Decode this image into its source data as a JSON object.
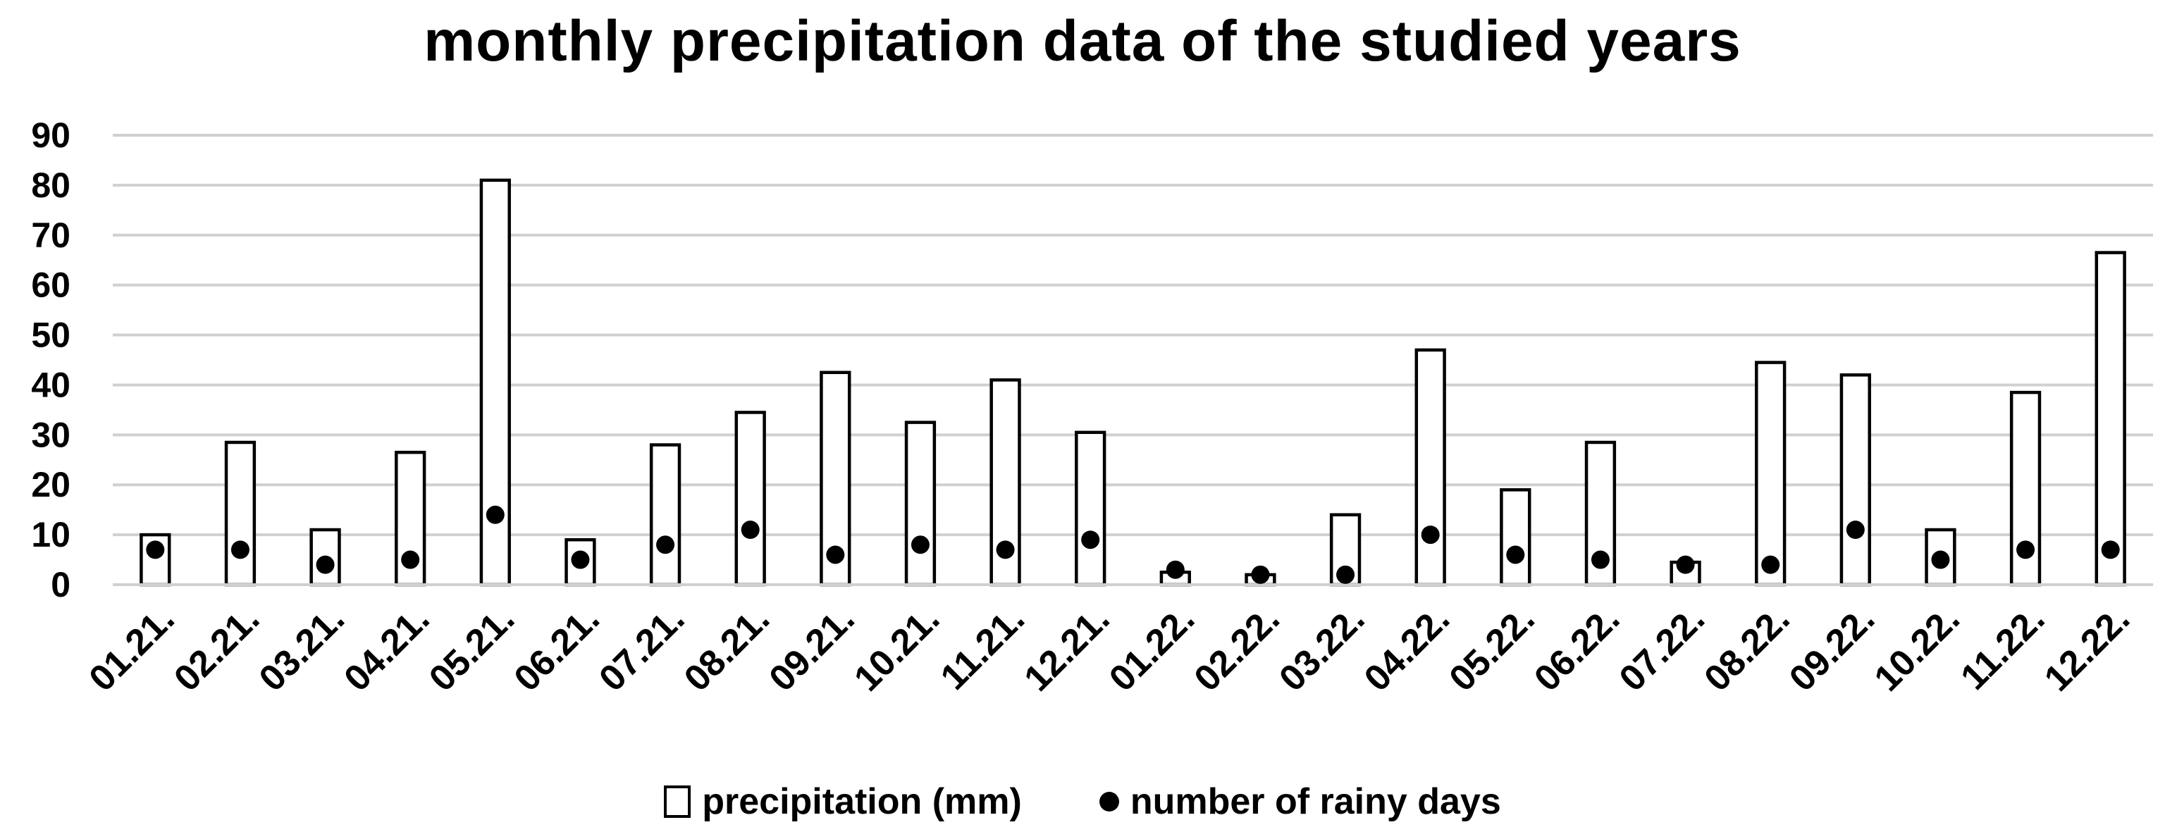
{
  "chart_data": {
    "type": "bar",
    "title": "monthly precipitation data of the studied years",
    "categories": [
      "01.21.",
      "02.21.",
      "03.21.",
      "04.21.",
      "05.21.",
      "06.21.",
      "07.21.",
      "08.21.",
      "09.21.",
      "10.21.",
      "11.21.",
      "12.21.",
      "01.22.",
      "02.22.",
      "03.22.",
      "04.22.",
      "05.22.",
      "06.22.",
      "07.22.",
      "08.22.",
      "09.22.",
      "10.22.",
      "11.22.",
      "12.22."
    ],
    "series": [
      {
        "name": "precipitation (mm)",
        "mark": "bar",
        "color": "#ffffff",
        "values": [
          10,
          28.5,
          11,
          26.5,
          81,
          9,
          28,
          34.5,
          42.5,
          32.5,
          41,
          30.5,
          2.5,
          2,
          14,
          47,
          19,
          28.5,
          4.5,
          44.5,
          42,
          11,
          38.5,
          66.5
        ]
      },
      {
        "name": "number of rainy days",
        "mark": "point",
        "color": "#000000",
        "values": [
          7,
          7,
          4,
          5,
          14,
          5,
          8,
          11,
          6,
          8,
          7,
          9,
          3,
          2,
          2,
          10,
          6,
          5,
          4,
          4,
          11,
          5,
          7,
          7
        ]
      }
    ],
    "yticks": [
      "0",
      "10",
      "20",
      "30",
      "40",
      "50",
      "60",
      "70",
      "80",
      "90"
    ],
    "ylim": [
      0,
      90
    ],
    "grid": true,
    "legend_position": "bottom-center"
  }
}
